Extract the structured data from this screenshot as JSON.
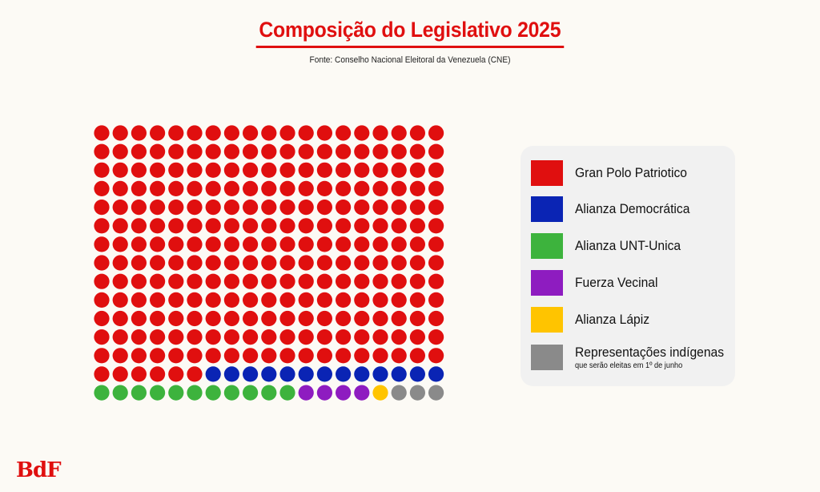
{
  "header": {
    "title": "Composição do Legislativo 2025",
    "source": "Fonte: Conselho Nacional Eleitoral da Venezuela (CNE)"
  },
  "logo": {
    "text": "BdF"
  },
  "chart_data": {
    "type": "waffle",
    "title": "Composição do Legislativo 2025",
    "columns": 19,
    "rows": 15,
    "total_seats": 285,
    "series": [
      {
        "name": "Gran Polo Patriotico",
        "value": 253,
        "color": "#e00f0f"
      },
      {
        "name": "Alianza Democrática",
        "value": 13,
        "color": "#0a24b4"
      },
      {
        "name": "Alianza UNT-Unica",
        "value": 11,
        "color": "#3db33d"
      },
      {
        "name": "Fuerza Vecinal",
        "value": 4,
        "color": "#8e1cc0"
      },
      {
        "name": "Alianza Lápiz",
        "value": 1,
        "color": "#ffc400"
      },
      {
        "name": "Representações indígenas",
        "value": 3,
        "color": "#8a8a8a",
        "note": "que serão eleitas em 1º de junho"
      }
    ],
    "legend_position": "right"
  }
}
